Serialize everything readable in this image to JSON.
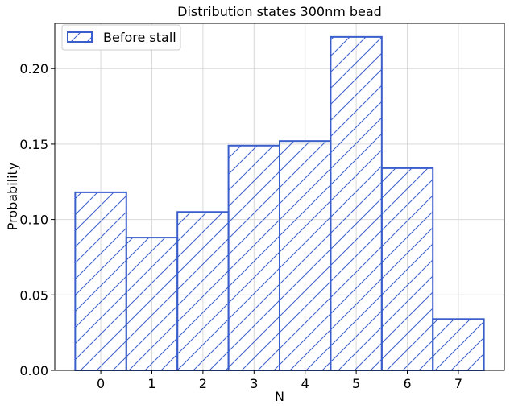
{
  "chart_data": {
    "type": "bar",
    "title": "Distribution states 300nm bead",
    "xlabel": "N",
    "ylabel": "Probability",
    "categories": [
      "0",
      "1",
      "2",
      "3",
      "4",
      "5",
      "6",
      "7"
    ],
    "series": [
      {
        "name": "Before stall",
        "values": [
          0.118,
          0.088,
          0.105,
          0.149,
          0.152,
          0.221,
          0.134,
          0.034
        ]
      }
    ],
    "ylim": [
      0,
      0.23
    ],
    "yticks": [
      0.0,
      0.05,
      0.1,
      0.15,
      0.2
    ],
    "ytick_labels": [
      "0.00",
      "0.05",
      "0.10",
      "0.15",
      "0.20"
    ],
    "grid": true,
    "legend_position": "top-left",
    "hatch": "diagonal",
    "colors": {
      "bar_edge": "#3a5fcd",
      "hatch": "#3a5fcd",
      "legend_edge": "#3a5fcd"
    }
  }
}
